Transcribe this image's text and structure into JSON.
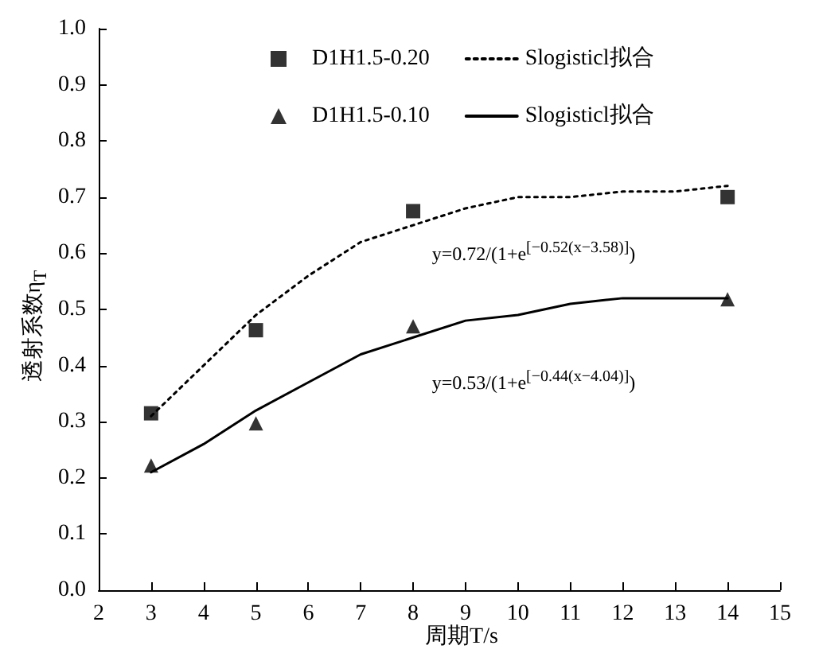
{
  "chart_data": {
    "type": "scatter",
    "xlabel": "周期T/s",
    "ylabel": "透射系数η$_{T}$",
    "xlim": [
      2,
      15
    ],
    "xticks": [
      2,
      3,
      4,
      5,
      6,
      7,
      8,
      9,
      10,
      11,
      12,
      13,
      14,
      15
    ],
    "ylim": [
      0,
      1
    ],
    "yticks": [
      {
        "value": 0,
        "label": "0.0"
      },
      {
        "value": 0.1,
        "label": "0.1"
      },
      {
        "value": 0.2,
        "label": "0.2"
      },
      {
        "value": 0.3,
        "label": "0.3"
      },
      {
        "value": 0.4,
        "label": "0.4"
      },
      {
        "value": 0.5,
        "label": "0.5"
      },
      {
        "value": 0.6,
        "label": "0.6"
      },
      {
        "value": 0.7,
        "label": "0.7"
      },
      {
        "value": 0.8,
        "label": "0.8"
      },
      {
        "value": 0.9,
        "label": "0.9"
      },
      {
        "value": 1,
        "label": "1.0"
      }
    ],
    "grid": false,
    "legend": "top",
    "series": [
      {
        "name": "D1H1.5-0.20",
        "marker": "square",
        "color": "#000000",
        "x": [
          3,
          5,
          8,
          14
        ],
        "values": [
          0.315,
          0.463,
          0.675,
          0.7
        ]
      },
      {
        "name": "Slogisticl拟合",
        "type": "line",
        "line_style": "dotted",
        "marker": "none",
        "color": "#000000",
        "x": [
          3,
          4,
          5,
          6,
          7,
          8,
          9,
          10,
          11,
          12,
          13,
          14
        ],
        "values": [
          0.31,
          0.4,
          0.49,
          0.56,
          0.62,
          0.65,
          0.68,
          0.7,
          0.7,
          0.71,
          0.71,
          0.72
        ]
      },
      {
        "name": "D1H1.5-0.10",
        "marker": "triangle",
        "color": "#000000",
        "x": [
          3,
          5,
          8,
          14
        ],
        "values": [
          0.222,
          0.297,
          0.47,
          0.518
        ]
      },
      {
        "name": "Slogisticl拟合",
        "type": "line",
        "line_style": "solid",
        "marker": "none",
        "color": "#000000",
        "x": [
          3,
          4,
          5,
          6,
          7,
          8,
          9,
          10,
          11,
          12,
          13,
          14
        ],
        "values": [
          0.21,
          0.26,
          0.32,
          0.37,
          0.42,
          0.45,
          0.48,
          0.49,
          0.51,
          0.52,
          0.52,
          0.52
        ]
      }
    ],
    "annotations": [
      "y=0.72/(1+e$^{[−0.52(x−3.58)]}$)",
      "y=0.53/(1+e$^{[−0.44(x−4.04)]}$)"
    ]
  }
}
